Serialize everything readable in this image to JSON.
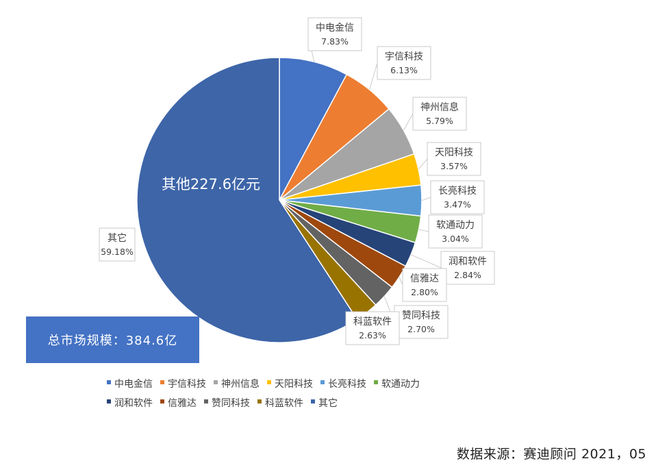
{
  "chart_data": {
    "type": "pie",
    "slices": [
      {
        "name": "中电金信",
        "value": 7.83,
        "label": "7.83%",
        "color": "#4472c4"
      },
      {
        "name": "宇信科技",
        "value": 6.13,
        "label": "6.13%",
        "color": "#ed7d31"
      },
      {
        "name": "神州信息",
        "value": 5.79,
        "label": "5.79%",
        "color": "#a5a5a5"
      },
      {
        "name": "天阳科技",
        "value": 3.57,
        "label": "3.57%",
        "color": "#ffc000"
      },
      {
        "name": "长亮科技",
        "value": 3.47,
        "label": "3.47%",
        "color": "#5b9bd5"
      },
      {
        "name": "软通动力",
        "value": 3.04,
        "label": "3.04%",
        "color": "#70ad47"
      },
      {
        "name": "润和软件",
        "value": 2.84,
        "label": "2.84%",
        "color": "#264478"
      },
      {
        "name": "信雅达",
        "value": 2.8,
        "label": "2.80%",
        "color": "#9e480e"
      },
      {
        "name": "赞同科技",
        "value": 2.7,
        "label": "2.70%",
        "color": "#636363"
      },
      {
        "name": "科蓝软件",
        "value": 2.63,
        "label": "2.63%",
        "color": "#997300"
      },
      {
        "name": "其它",
        "value": 59.18,
        "label": "59.18%",
        "color": "#3d65a8"
      }
    ],
    "annotation_other": "其他227.6亿元",
    "legend_position": "bottom",
    "legend_rows": [
      [
        "中电金信",
        "宇信科技",
        "神州信息",
        "天阳科技",
        "长亮科技",
        "软通动力"
      ],
      [
        "润和软件",
        "信雅达",
        "赞同科技",
        "科蓝软件",
        "其它"
      ]
    ]
  },
  "total_market": "总市场规模：384.6亿",
  "source": "数据来源：赛迪顾问 2021，05"
}
